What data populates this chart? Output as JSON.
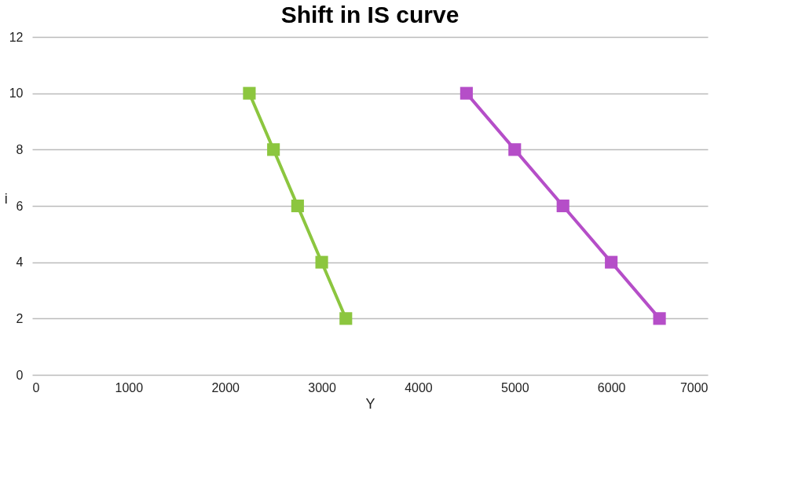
{
  "chart_data": {
    "type": "line",
    "title": "Shift in IS curve",
    "xlabel": "Y",
    "ylabel": "i",
    "series": [
      {
        "color": "#8cc63f",
        "x": [
          2250,
          2500,
          2750,
          3000,
          3250
        ],
        "values": [
          10,
          8,
          6,
          4,
          2
        ]
      },
      {
        "color": "#b54ec8",
        "x": [
          4500,
          5000,
          5500,
          6000,
          6500
        ],
        "values": [
          10,
          8,
          6,
          4,
          2
        ]
      }
    ],
    "xlim": [
      0,
      7000
    ],
    "xticks": [
      0,
      1000,
      2000,
      3000,
      4000,
      5000,
      6000,
      7000
    ],
    "ylim": [
      0,
      12
    ],
    "yticks": [
      0,
      2,
      4,
      6,
      8,
      10,
      12
    ],
    "grid": "y",
    "marker": "square",
    "line_style": "solid",
    "legend": false
  }
}
